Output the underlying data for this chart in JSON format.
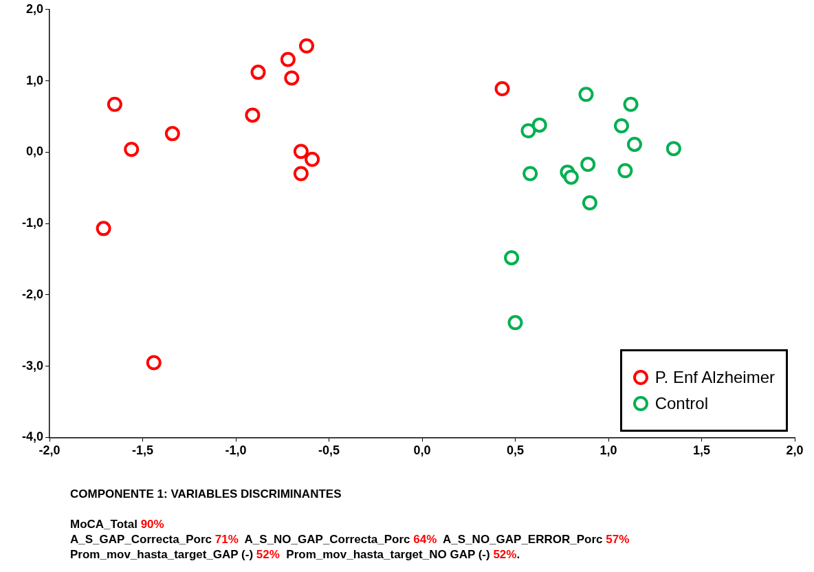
{
  "chart_data": {
    "type": "scatter",
    "legend": "bottom right",
    "marker": "circle",
    "grid": false,
    "xlim": [
      -2,
      2
    ],
    "ylim": [
      -4,
      2
    ],
    "xticks": [
      {
        "value": -2,
        "label": "-2,0"
      },
      {
        "value": -1.5,
        "label": "-1,5"
      },
      {
        "value": -1,
        "label": "-1,0"
      },
      {
        "value": -0.5,
        "label": "-0,5"
      },
      {
        "value": 0,
        "label": "0,0"
      },
      {
        "value": 0.5,
        "label": "0,5"
      },
      {
        "value": 1,
        "label": "1,0"
      },
      {
        "value": 1.5,
        "label": "1,5"
      },
      {
        "value": 2,
        "label": "2,0"
      }
    ],
    "yticks": [
      {
        "value": -4,
        "label": "-4,0"
      },
      {
        "value": -3,
        "label": "-3,0"
      },
      {
        "value": -2,
        "label": "-2,0"
      },
      {
        "value": -1,
        "label": "-1,0"
      },
      {
        "value": 0,
        "label": "0,0"
      },
      {
        "value": 1,
        "label": "1,0"
      },
      {
        "value": 2,
        "label": "2,0"
      }
    ],
    "series": [
      {
        "name": "P. Enf Alzheimer",
        "color": "#ff0000",
        "x": [
          0.43,
          -0.62,
          -0.72,
          -0.88,
          -0.7,
          -1.65,
          -0.91,
          -1.34,
          -1.56,
          -0.65,
          -0.59,
          -0.65,
          -1.71,
          -1.44
        ],
        "values": [
          0.89,
          1.49,
          1.3,
          1.12,
          1.04,
          0.67,
          0.52,
          0.26,
          0.04,
          0.01,
          -0.1,
          -0.3,
          -1.07,
          -2.95
        ]
      },
      {
        "name": "Control",
        "color": "#00b050",
        "x": [
          0.88,
          1.12,
          0.63,
          0.57,
          1.07,
          1.14,
          1.35,
          0.89,
          0.78,
          0.8,
          0.58,
          1.09,
          0.9,
          0.48,
          0.5
        ],
        "values": [
          0.81,
          0.67,
          0.38,
          0.3,
          0.37,
          0.11,
          0.05,
          -0.17,
          -0.28,
          -0.35,
          -0.3,
          -0.26,
          -0.71,
          -1.48,
          -2.39
        ]
      }
    ],
    "annotations": [
      "COMPONENTE 1: VARIABLES DISCRIMINANTES",
      "MoCA_Total 90%",
      "A_S_GAP_Correcta_Porc 71%  A_S_NO_GAP_Correcta_Porc 64%  A_S_NO_GAP_ERROR_Porc 57%",
      "Prom_mov_hasta_target_GAP (-) 52%  Prom_mov_hasta_target_NO GAP (-) 52%."
    ]
  }
}
